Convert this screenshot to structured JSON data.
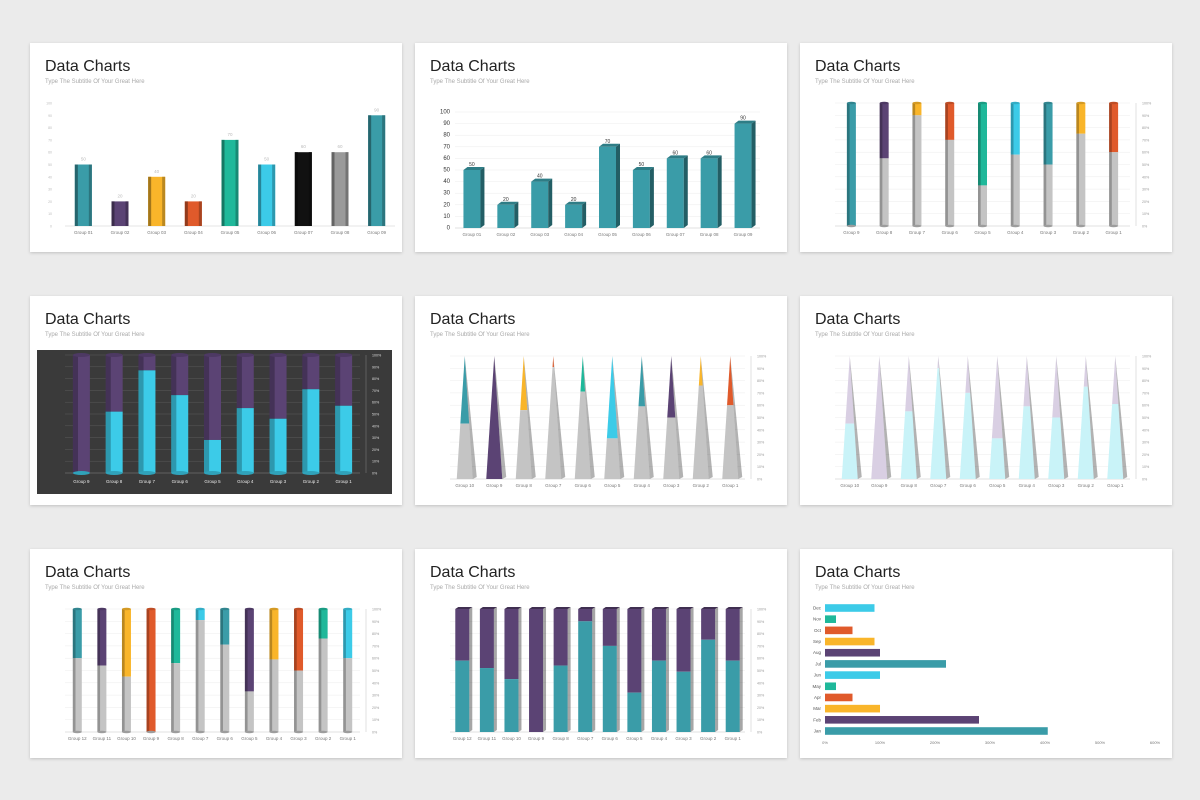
{
  "palette": {
    "teal": "#3a9ca8",
    "purple": "#5b4374",
    "yellow": "#f9b52a",
    "orange": "#e05a2b",
    "green": "#1fb89a",
    "cyan": "#3ccbe8",
    "black": "#111111",
    "gray": "#9a9a9a",
    "lightgray": "#c4c4c4",
    "dark": "#2e2e2e",
    "ice": "#c9f3f8",
    "lilac": "#d9cfe3"
  },
  "slides": [
    {
      "title": "Data Charts",
      "subtitle": "Type The Subtitle Of Your Great Here",
      "chart_data": {
        "type": "bar",
        "style": "flat",
        "categories": [
          "Group 01",
          "Group 02",
          "Group 03",
          "Group 04",
          "Group 05",
          "Group 06",
          "Group 07",
          "Group 08",
          "Group 09"
        ],
        "values": [
          50,
          20,
          40,
          20,
          70,
          50,
          60,
          60,
          90
        ],
        "data_labels": [
          "50",
          "20",
          "40",
          "20",
          "70",
          "50",
          "60",
          "60",
          "90"
        ],
        "colors": [
          "teal",
          "purple",
          "yellow",
          "orange",
          "green",
          "cyan",
          "black",
          "gray",
          "teal"
        ],
        "ylim": [
          0,
          100
        ],
        "yticks": [
          "0",
          "10",
          "20",
          "30",
          "40",
          "50",
          "60",
          "70",
          "80",
          "90",
          "100"
        ],
        "grid": false
      }
    },
    {
      "title": "Data Charts",
      "subtitle": "Type The Subtitle Of Your Great Here",
      "chart_data": {
        "type": "bar",
        "style": "3d",
        "categories": [
          "Group 01",
          "Group 02",
          "Group 03",
          "Group 04",
          "Group 05",
          "Group 06",
          "Group 07",
          "Group 08",
          "Group 09"
        ],
        "values": [
          50,
          20,
          40,
          20,
          70,
          50,
          60,
          60,
          90
        ],
        "data_labels": [
          "50",
          "20",
          "40",
          "20",
          "70",
          "50",
          "60",
          "60",
          "90"
        ],
        "colors": [
          "teal"
        ],
        "ylim": [
          0,
          100
        ],
        "yticks": [
          "0",
          "10",
          "20",
          "30",
          "40",
          "50",
          "60",
          "70",
          "80",
          "90",
          "100"
        ],
        "grid": true
      }
    },
    {
      "title": "Data Charts",
      "subtitle": "Type The Subtitle Of Your Great Here",
      "chart_data": {
        "type": "bar",
        "style": "cylinder",
        "stacked": "percent",
        "categories": [
          "Group 9",
          "Group 8",
          "Group 7",
          "Group 6",
          "Group 5",
          "Group 4",
          "Group 3",
          "Group 2",
          "Group 1"
        ],
        "bottom_values": [
          0,
          55,
          90,
          70,
          33,
          58,
          50,
          75,
          60
        ],
        "bottom_color": "lightgray",
        "top_colors": [
          "teal",
          "purple",
          "yellow",
          "orange",
          "green",
          "cyan",
          "teal",
          "yellow",
          "orange"
        ],
        "ylim": [
          0,
          100
        ],
        "yticks": [
          "0%",
          "10%",
          "20%",
          "30%",
          "40%",
          "50%",
          "60%",
          "70%",
          "80%",
          "90%",
          "100%"
        ],
        "grid": true
      }
    },
    {
      "title": "Data Charts",
      "subtitle": "Type The Subtitle Of Your Great Here",
      "chart_data": {
        "type": "bar",
        "style": "cylinder",
        "stacked": "percent",
        "background": "dark",
        "categories": [
          "Group 9",
          "Group 8",
          "Group 7",
          "Group 6",
          "Group 5",
          "Group 4",
          "Group 3",
          "Group 2",
          "Group 1"
        ],
        "bottom_values": [
          0,
          52,
          87,
          66,
          28,
          55,
          46,
          71,
          57
        ],
        "bottom_color": "cyan",
        "top_colors": [
          "purple"
        ],
        "ylim": [
          0,
          100
        ],
        "yticks": [
          "0%",
          "10%",
          "20%",
          "30%",
          "40%",
          "50%",
          "60%",
          "70%",
          "80%",
          "90%",
          "100%"
        ],
        "grid": true
      }
    },
    {
      "title": "Data Charts",
      "subtitle": "Type The Subtitle Of Your Great Here",
      "chart_data": {
        "type": "bar",
        "style": "pyramid",
        "stacked": "percent",
        "categories": [
          "Group 10",
          "Group 9",
          "Group 8",
          "Group 7",
          "Group 6",
          "Group 5",
          "Group 4",
          "Group 3",
          "Group 2",
          "Group 1"
        ],
        "bottom_values": [
          45,
          0,
          56,
          91,
          71,
          33,
          59,
          50,
          76,
          60
        ],
        "bottom_color": "lightgray",
        "top_colors": [
          "teal",
          "purple",
          "yellow",
          "orange",
          "green",
          "cyan",
          "teal",
          "purple",
          "yellow",
          "orange"
        ],
        "ylim": [
          0,
          100
        ],
        "yticks": [
          "0%",
          "10%",
          "20%",
          "30%",
          "40%",
          "50%",
          "60%",
          "70%",
          "80%",
          "90%",
          "100%"
        ],
        "grid": true
      }
    },
    {
      "title": "Data Charts",
      "subtitle": "Type The Subtitle Of Your Great Here",
      "chart_data": {
        "type": "bar",
        "style": "pyramid",
        "stacked": "percent",
        "categories": [
          "Group 10",
          "Group 9",
          "Group 8",
          "Group 7",
          "Group 6",
          "Group 5",
          "Group 4",
          "Group 3",
          "Group 2",
          "Group 1"
        ],
        "bottom_values": [
          45,
          0,
          55,
          90,
          70,
          33,
          59,
          50,
          75,
          61
        ],
        "bottom_color": "ice",
        "top_colors": [
          "lilac"
        ],
        "ylim": [
          0,
          100
        ],
        "yticks": [
          "0%",
          "10%",
          "20%",
          "30%",
          "40%",
          "50%",
          "60%",
          "70%",
          "80%",
          "90%",
          "100%"
        ],
        "grid": true
      }
    },
    {
      "title": "Data Charts",
      "subtitle": "Type The Subtitle Of Your Great Here",
      "chart_data": {
        "type": "bar",
        "style": "cylinder",
        "stacked": "percent",
        "categories": [
          "Group 12",
          "Group 11",
          "Group 10",
          "Group 9",
          "Group 8",
          "Group 7",
          "Group 6",
          "Group 5",
          "Group 4",
          "Group 3",
          "Group 2",
          "Group 1"
        ],
        "bottom_values": [
          60,
          54,
          45,
          0,
          56,
          91,
          71,
          33,
          59,
          50,
          76,
          60
        ],
        "bottom_color": "lightgray",
        "top_colors": [
          "teal",
          "purple",
          "yellow",
          "orange",
          "green",
          "cyan",
          "teal",
          "purple",
          "yellow",
          "orange",
          "green",
          "cyan"
        ],
        "ylim": [
          0,
          100
        ],
        "yticks": [
          "0%",
          "10%",
          "20%",
          "30%",
          "40%",
          "50%",
          "60%",
          "70%",
          "80%",
          "90%",
          "100%"
        ],
        "grid": true
      }
    },
    {
      "title": "Data Charts",
      "subtitle": "Type The Subtitle Of Your Great Here",
      "chart_data": {
        "type": "bar",
        "style": "3d",
        "stacked": "percent",
        "categories": [
          "Group 12",
          "Group 11",
          "Group 10",
          "Group 9",
          "Group 8",
          "Group 7",
          "Group 6",
          "Group 5",
          "Group 4",
          "Group 3",
          "Group 2",
          "Group 1"
        ],
        "bottom_values": [
          58,
          52,
          43,
          0,
          54,
          90,
          70,
          32,
          58,
          49,
          75,
          58
        ],
        "bottom_color": "teal",
        "top_colors": [
          "purple"
        ],
        "ylim": [
          0,
          100
        ],
        "yticks": [
          "0%",
          "10%",
          "20%",
          "30%",
          "40%",
          "50%",
          "60%",
          "70%",
          "80%",
          "90%",
          "100%"
        ],
        "grid": true
      }
    },
    {
      "title": "Data Charts",
      "subtitle": "Type The Subtitle Of Your Great Here",
      "chart_data": {
        "type": "bar",
        "orientation": "horizontal",
        "categories": [
          "Jan",
          "Feb",
          "Mar",
          "Apr",
          "May",
          "Jun",
          "Jul",
          "Aug",
          "Sep",
          "Oct",
          "Nov",
          "Dec"
        ],
        "values": [
          405,
          280,
          100,
          50,
          20,
          100,
          220,
          100,
          90,
          50,
          20,
          90
        ],
        "colors": [
          "teal",
          "purple",
          "yellow",
          "orange",
          "green",
          "cyan",
          "teal",
          "purple",
          "yellow",
          "orange",
          "green",
          "cyan"
        ],
        "xlim": [
          0,
          600
        ],
        "xticks": [
          "0%",
          "100%",
          "200%",
          "300%",
          "400%",
          "500%",
          "600%"
        ],
        "grid": false
      }
    }
  ]
}
